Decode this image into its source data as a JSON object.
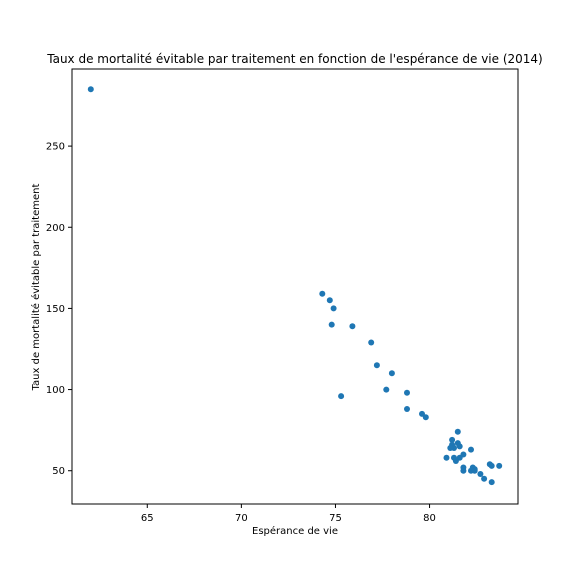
{
  "chart_data": {
    "type": "scatter",
    "title": "Taux de mortalité évitable par traitement en fonction de l'espérance de vie (2014)",
    "xlabel": "Espérance de vie",
    "ylabel": "Taux de mortalité évitable par traitement",
    "xlim": [
      61.0,
      84.7
    ],
    "ylim": [
      29.5,
      297.5
    ],
    "x_ticks": [
      65,
      70,
      75,
      80
    ],
    "y_ticks": [
      50,
      100,
      150,
      200,
      250
    ],
    "grid": false,
    "legend": "none",
    "marker_color": "#1f77b4",
    "points": [
      {
        "x": 62.0,
        "y": 285
      },
      {
        "x": 74.3,
        "y": 159
      },
      {
        "x": 74.7,
        "y": 155
      },
      {
        "x": 74.9,
        "y": 150
      },
      {
        "x": 74.8,
        "y": 140
      },
      {
        "x": 75.9,
        "y": 139
      },
      {
        "x": 76.9,
        "y": 129
      },
      {
        "x": 77.2,
        "y": 115
      },
      {
        "x": 78.0,
        "y": 110
      },
      {
        "x": 75.3,
        "y": 96
      },
      {
        "x": 77.7,
        "y": 100
      },
      {
        "x": 78.8,
        "y": 98
      },
      {
        "x": 78.8,
        "y": 88
      },
      {
        "x": 79.6,
        "y": 85
      },
      {
        "x": 79.8,
        "y": 83
      },
      {
        "x": 81.5,
        "y": 74
      },
      {
        "x": 81.2,
        "y": 69
      },
      {
        "x": 81.5,
        "y": 67
      },
      {
        "x": 81.2,
        "y": 66
      },
      {
        "x": 81.6,
        "y": 65
      },
      {
        "x": 81.3,
        "y": 64
      },
      {
        "x": 81.1,
        "y": 64
      },
      {
        "x": 82.2,
        "y": 63
      },
      {
        "x": 81.8,
        "y": 60
      },
      {
        "x": 80.9,
        "y": 58
      },
      {
        "x": 81.3,
        "y": 58
      },
      {
        "x": 81.6,
        "y": 58
      },
      {
        "x": 81.4,
        "y": 56
      },
      {
        "x": 83.2,
        "y": 54
      },
      {
        "x": 83.3,
        "y": 53
      },
      {
        "x": 83.7,
        "y": 53
      },
      {
        "x": 82.3,
        "y": 52
      },
      {
        "x": 81.8,
        "y": 52
      },
      {
        "x": 82.4,
        "y": 51
      },
      {
        "x": 81.8,
        "y": 50
      },
      {
        "x": 82.2,
        "y": 50
      },
      {
        "x": 82.4,
        "y": 50
      },
      {
        "x": 82.7,
        "y": 48
      },
      {
        "x": 82.9,
        "y": 45
      },
      {
        "x": 83.3,
        "y": 43
      }
    ]
  }
}
